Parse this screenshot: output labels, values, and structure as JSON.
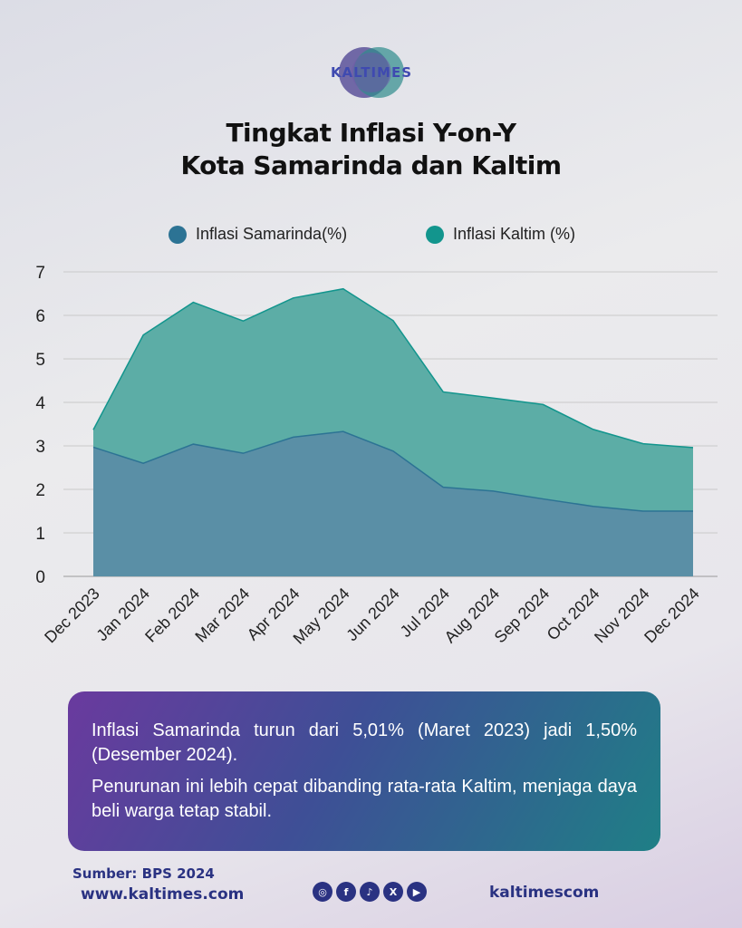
{
  "brand": {
    "name": "KALTIMES"
  },
  "title": {
    "line1": "Tingkat Inflasi Y-on-Y",
    "line2": "Kota Samarinda dan Kaltim"
  },
  "colors": {
    "samarinda": "#2c7394",
    "kaltim": "#12958d",
    "samarinda_fill": "#5a8fa6",
    "kaltim_fill": "#5cada6"
  },
  "chart_data": {
    "type": "area",
    "title": "Tingkat Inflasi Y-on-Y Kota Samarinda dan Kaltim",
    "x": [
      "Dec 2023",
      "Jan 2024",
      "Feb 2024",
      "Mar 2024",
      "Apr 2024",
      "May 2024",
      "Jun 2024",
      "Jul 2024",
      "Aug 2024",
      "Sep 2024",
      "Oct 2024",
      "Nov 2024",
      "Dec 2024"
    ],
    "series": [
      {
        "name": "Inflasi Samarinda(%)",
        "values": [
          2.97,
          2.6,
          3.04,
          2.83,
          3.2,
          3.33,
          2.88,
          2.05,
          1.96,
          1.78,
          1.61,
          1.5,
          1.5
        ]
      },
      {
        "name": "Inflasi Kaltim (%)",
        "values": [
          3.37,
          5.55,
          6.3,
          5.87,
          6.4,
          6.61,
          5.88,
          4.24,
          4.1,
          3.95,
          3.38,
          3.05,
          2.96
        ]
      }
    ],
    "ylim": [
      0,
      7
    ],
    "yticks": [
      0,
      1,
      2,
      3,
      4,
      5,
      6,
      7
    ],
    "grid": true,
    "legend": "top"
  },
  "info": {
    "p1": "Inflasi Samarinda turun dari 5,01% (Maret 2023) jadi 1,50% (Desember 2024).",
    "p2": "Penurunan ini lebih cepat dibanding rata-rata Kaltim, menjaga daya beli warga tetap stabil."
  },
  "footer": {
    "source": "Sumber: BPS 2024",
    "website": "www.kaltimes.com",
    "handle": "kaltimescom"
  },
  "socials": [
    "instagram-icon",
    "facebook-icon",
    "tiktok-icon",
    "x-icon",
    "youtube-icon"
  ]
}
